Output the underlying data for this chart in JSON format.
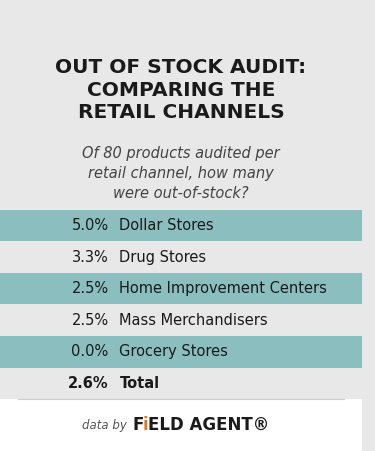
{
  "title": "OUT OF STOCK AUDIT:\nCOMPARING THE\nRETAIL CHANNELS",
  "subtitle": "Of 80 products audited per\nretail channel, how many\nwere out-of-stock?",
  "rows": [
    {
      "pct": "5.0%",
      "label": "Dollar Stores",
      "highlight": true
    },
    {
      "pct": "3.3%",
      "label": "Drug Stores",
      "highlight": false
    },
    {
      "pct": "2.5%",
      "label": "Home Improvement Centers",
      "highlight": true
    },
    {
      "pct": "2.5%",
      "label": "Mass Merchandisers",
      "highlight": false
    },
    {
      "pct": "0.0%",
      "label": "Grocery Stores",
      "highlight": true
    },
    {
      "pct": "2.6%",
      "label": "Total",
      "highlight": false
    }
  ],
  "bg_color": "#e8e8e8",
  "highlight_color": "#8bbfbf",
  "white_row_color": "#e8e8e8",
  "title_color": "#1a1a1a",
  "subtitle_color": "#444444",
  "pct_color": "#1a1a1a",
  "label_color": "#1a1a1a",
  "footer_bg": "#ffffff",
  "divider_color": "#cccccc"
}
